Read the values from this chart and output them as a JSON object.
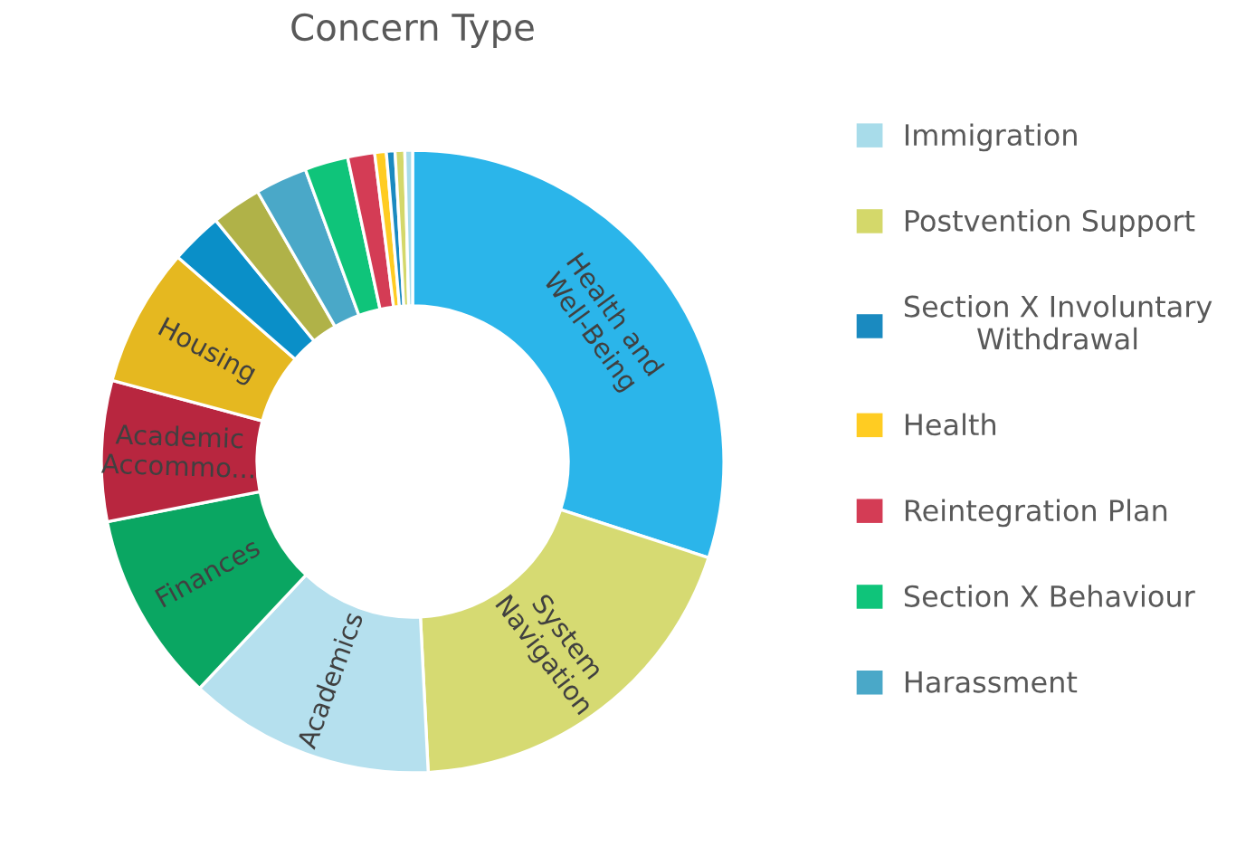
{
  "chart_data": {
    "type": "donut",
    "title": "Concern Type",
    "categories": [
      "Health and Well-Being",
      "System Navigation",
      "Academics",
      "Finances",
      "Academic Accommo...",
      "Housing",
      null,
      null,
      "Harassment",
      "Section X Behaviour",
      "Reintegration Plan",
      "Health",
      "Section X Involuntary Withdrawal",
      "Postvention Support",
      "Immigration"
    ],
    "values": [
      30,
      19.2,
      12.8,
      9.9,
      7.3,
      7.2,
      2.7,
      2.6,
      2.7,
      2.25,
      1.4,
      0.6,
      0.45,
      0.5,
      0.4
    ],
    "colors": [
      "#2bb5ea",
      "#d6da72",
      "#b5e0ee",
      "#0aa662",
      "#b8263f",
      "#e5b820",
      "#0a8fc8",
      "#b0b248",
      "#4aa8c8",
      "#0fc47a",
      "#d43c55",
      "#ffcc22",
      "#1a8ac0",
      "#d4d86a",
      "#a8dcea"
    ],
    "legend": "right"
  }
}
